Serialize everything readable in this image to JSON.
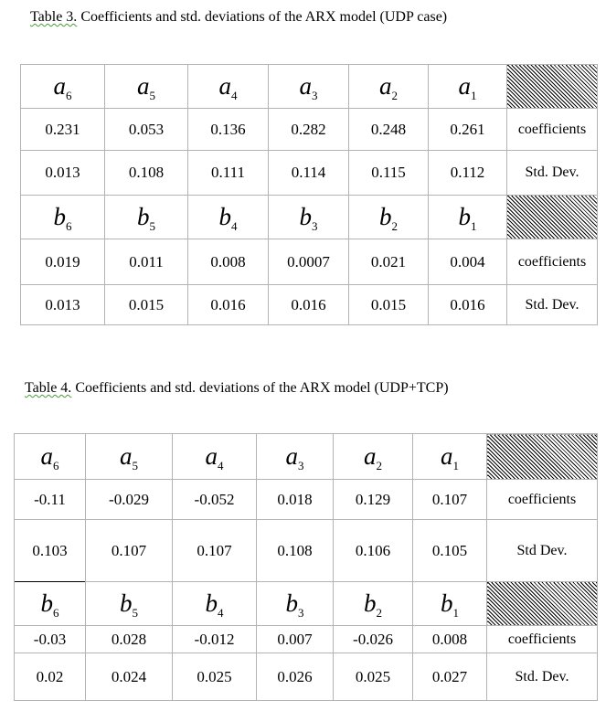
{
  "table3": {
    "caption_prefix": "Table 3.",
    "caption_rest": " Coefficients and std. deviations of the ARX model (UDP case)",
    "a_header": [
      "6",
      "5",
      "4",
      "3",
      "2",
      "1"
    ],
    "a_coefficients": [
      "0.231",
      "0.053",
      "0.136",
      "0.282",
      "0.248",
      "0.261"
    ],
    "a_coefficients_label": "coefficients",
    "a_stddev": [
      "0.013",
      "0.108",
      "0.111",
      "0.114",
      "0.115",
      "0.112"
    ],
    "a_stddev_label": "Std. Dev.",
    "b_header": [
      "6",
      "5",
      "4",
      "3",
      "2",
      "1"
    ],
    "b_coefficients": [
      "0.019",
      "0.011",
      "0.008",
      "0.0007",
      "0.021",
      "0.004"
    ],
    "b_coefficients_label": "coefficients",
    "b_stddev": [
      "0.013",
      "0.015",
      "0.016",
      "0.016",
      "0.015",
      "0.016"
    ],
    "b_stddev_label": "Std. Dev."
  },
  "table4": {
    "caption_prefix": "Table 4.",
    "caption_rest": " Coefficients and std. deviations of the ARX model (UDP+TCP)",
    "a_header": [
      "6",
      "5",
      "4",
      "3",
      "2",
      "1"
    ],
    "a_coefficients": [
      "-0.11",
      "-0.029",
      "-0.052",
      "0.018",
      "0.129",
      "0.107"
    ],
    "a_coefficients_label": "coefficients",
    "a_stddev": [
      "0.103",
      "0.107",
      "0.107",
      "0.108",
      "0.106",
      "0.105"
    ],
    "a_stddev_label": "Std Dev.",
    "b_header": [
      "6",
      "5",
      "4",
      "3",
      "2",
      "1"
    ],
    "b_coefficients": [
      "-0.03",
      "0.028",
      "-0.012",
      "0.007",
      "-0.026",
      "0.008"
    ],
    "b_coefficients_label": "coefficients",
    "b_stddev": [
      "0.02",
      "0.024",
      "0.025",
      "0.026",
      "0.025",
      "0.027"
    ],
    "b_stddev_label": "Std. Dev."
  }
}
